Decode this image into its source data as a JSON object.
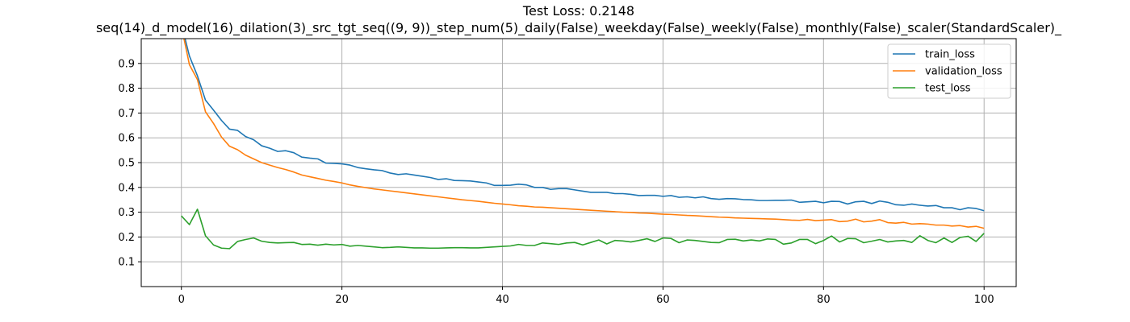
{
  "chart_data": {
    "type": "line",
    "title": "Test Loss: 0.2148",
    "subtitle": "seq(14)_d_model(16)_dilation(3)_src_tgt_seq((9, 9))_step_num(5)_daily(False)_weekday(False)_weekly(False)_monthly(False)_scaler(StandardScaler)_",
    "xlabel": "",
    "ylabel": "",
    "xlim": [
      -5,
      104
    ],
    "ylim": [
      0.0,
      1.0
    ],
    "xticks": [
      0,
      20,
      40,
      60,
      80,
      100
    ],
    "yticks": [
      0.1,
      0.2,
      0.3,
      0.4,
      0.5,
      0.6,
      0.7,
      0.8,
      0.9
    ],
    "grid": true,
    "legend_position": "top-right",
    "series": [
      {
        "name": "train_loss",
        "color": "#1f77b4",
        "values": [
          1.06,
          0.93,
          0.85,
          0.752,
          0.712,
          0.67,
          0.635,
          0.63,
          0.605,
          0.592,
          0.568,
          0.558,
          0.545,
          0.548,
          0.54,
          0.522,
          0.518,
          0.515,
          0.498,
          0.497,
          0.495,
          0.49,
          0.48,
          0.475,
          0.471,
          0.468,
          0.458,
          0.452,
          0.455,
          0.45,
          0.445,
          0.44,
          0.432,
          0.435,
          0.428,
          0.427,
          0.426,
          0.422,
          0.418,
          0.408,
          0.408,
          0.409,
          0.413,
          0.41,
          0.4,
          0.4,
          0.392,
          0.395,
          0.395,
          0.39,
          0.385,
          0.38,
          0.38,
          0.38,
          0.375,
          0.375,
          0.372,
          0.367,
          0.368,
          0.368,
          0.364,
          0.367,
          0.36,
          0.362,
          0.358,
          0.362,
          0.355,
          0.352,
          0.355,
          0.354,
          0.351,
          0.35,
          0.347,
          0.347,
          0.348,
          0.348,
          0.349,
          0.34,
          0.342,
          0.344,
          0.338,
          0.344,
          0.343,
          0.333,
          0.342,
          0.344,
          0.335,
          0.345,
          0.34,
          0.33,
          0.328,
          0.333,
          0.328,
          0.325,
          0.327,
          0.318,
          0.318,
          0.31,
          0.318,
          0.315,
          0.306
        ]
      },
      {
        "name": "validation_loss",
        "color": "#ff7f0e",
        "values": [
          1.05,
          0.895,
          0.835,
          0.705,
          0.658,
          0.603,
          0.566,
          0.552,
          0.53,
          0.515,
          0.5,
          0.49,
          0.48,
          0.472,
          0.462,
          0.45,
          0.443,
          0.436,
          0.429,
          0.424,
          0.418,
          0.41,
          0.404,
          0.399,
          0.394,
          0.39,
          0.386,
          0.382,
          0.378,
          0.374,
          0.37,
          0.366,
          0.362,
          0.358,
          0.354,
          0.35,
          0.347,
          0.344,
          0.34,
          0.336,
          0.333,
          0.33,
          0.326,
          0.324,
          0.321,
          0.32,
          0.318,
          0.316,
          0.314,
          0.312,
          0.31,
          0.308,
          0.306,
          0.304,
          0.302,
          0.3,
          0.299,
          0.297,
          0.296,
          0.294,
          0.292,
          0.291,
          0.289,
          0.287,
          0.286,
          0.284,
          0.282,
          0.28,
          0.279,
          0.277,
          0.276,
          0.275,
          0.274,
          0.273,
          0.272,
          0.27,
          0.268,
          0.267,
          0.271,
          0.266,
          0.268,
          0.27,
          0.262,
          0.264,
          0.272,
          0.261,
          0.264,
          0.27,
          0.258,
          0.256,
          0.259,
          0.252,
          0.254,
          0.252,
          0.248,
          0.248,
          0.244,
          0.246,
          0.24,
          0.243,
          0.235
        ]
      },
      {
        "name": "test_loss",
        "color": "#2ca02c",
        "values": [
          0.285,
          0.25,
          0.312,
          0.205,
          0.168,
          0.155,
          0.153,
          0.182,
          0.19,
          0.196,
          0.183,
          0.178,
          0.176,
          0.177,
          0.178,
          0.17,
          0.171,
          0.167,
          0.171,
          0.168,
          0.17,
          0.163,
          0.166,
          0.163,
          0.16,
          0.157,
          0.158,
          0.16,
          0.158,
          0.156,
          0.156,
          0.155,
          0.155,
          0.156,
          0.157,
          0.157,
          0.156,
          0.156,
          0.158,
          0.16,
          0.162,
          0.164,
          0.17,
          0.166,
          0.166,
          0.176,
          0.173,
          0.17,
          0.176,
          0.178,
          0.168,
          0.178,
          0.188,
          0.172,
          0.186,
          0.184,
          0.18,
          0.186,
          0.193,
          0.182,
          0.196,
          0.194,
          0.177,
          0.188,
          0.186,
          0.182,
          0.178,
          0.177,
          0.19,
          0.191,
          0.184,
          0.188,
          0.184,
          0.192,
          0.19,
          0.171,
          0.176,
          0.19,
          0.19,
          0.173,
          0.186,
          0.204,
          0.18,
          0.194,
          0.193,
          0.177,
          0.183,
          0.19,
          0.18,
          0.184,
          0.186,
          0.178,
          0.205,
          0.186,
          0.177,
          0.196,
          0.178,
          0.198,
          0.203,
          0.182,
          0.215
        ]
      }
    ]
  }
}
